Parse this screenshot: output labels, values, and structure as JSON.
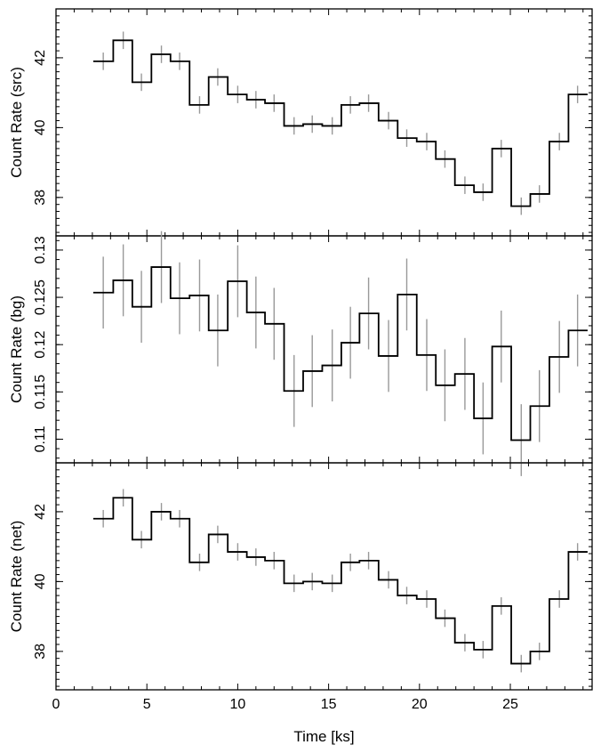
{
  "chart_data": [
    {
      "type": "line",
      "style": "step-histogram with error bars",
      "ylabel": "Count Rate (src)",
      "xlim": [
        0,
        29.5
      ],
      "ylim": [
        36.9,
        43.4
      ],
      "yticks": [
        38,
        40,
        42
      ],
      "step_color": "#000000",
      "errorbar_color": "#999999",
      "x": [
        2.6,
        3.7,
        4.7,
        5.8,
        6.8,
        7.9,
        8.9,
        10.0,
        11.0,
        12.0,
        13.1,
        14.1,
        15.2,
        16.2,
        17.2,
        18.3,
        19.3,
        20.4,
        21.4,
        22.5,
        23.5,
        24.5,
        25.6,
        26.6,
        27.7,
        28.7
      ],
      "values": [
        41.9,
        42.5,
        41.3,
        42.1,
        41.9,
        40.65,
        41.45,
        40.95,
        40.8,
        40.7,
        40.05,
        40.1,
        40.05,
        40.65,
        40.7,
        40.2,
        39.7,
        39.6,
        39.1,
        38.35,
        38.15,
        39.4,
        37.75,
        38.1,
        39.6,
        40.95
      ],
      "errors": [
        0.25,
        0.25,
        0.25,
        0.25,
        0.25,
        0.25,
        0.25,
        0.25,
        0.25,
        0.25,
        0.25,
        0.25,
        0.25,
        0.25,
        0.25,
        0.25,
        0.25,
        0.25,
        0.25,
        0.25,
        0.25,
        0.25,
        0.25,
        0.25,
        0.25,
        0.25
      ]
    },
    {
      "type": "line",
      "style": "step-histogram with error bars",
      "ylabel": "Count Rate (bg)",
      "xlim": [
        0,
        29.5
      ],
      "ylim": [
        0.1075,
        0.1315
      ],
      "yticks": [
        0.11,
        0.115,
        0.12,
        0.125,
        0.13
      ],
      "ytick_labels": [
        "0.11",
        "0.115",
        "0.12",
        "0.125",
        "0.13"
      ],
      "step_color": "#000000",
      "errorbar_color": "#999999",
      "x": [
        2.6,
        3.7,
        4.7,
        5.8,
        6.8,
        7.9,
        8.9,
        10.0,
        11.0,
        12.0,
        13.1,
        14.1,
        15.2,
        16.2,
        17.2,
        18.3,
        19.3,
        20.4,
        21.4,
        22.5,
        23.5,
        24.5,
        25.6,
        26.6,
        27.7,
        28.7
      ],
      "values": [
        0.1255,
        0.1268,
        0.124,
        0.1282,
        0.1249,
        0.1252,
        0.1215,
        0.1267,
        0.1234,
        0.1222,
        0.1151,
        0.1172,
        0.1178,
        0.1202,
        0.1233,
        0.1188,
        0.1253,
        0.1189,
        0.1157,
        0.1169,
        0.1122,
        0.1198,
        0.1099,
        0.1135,
        0.1187,
        0.1215
      ],
      "errors": [
        0.0038,
        0.0038,
        0.0038,
        0.0038,
        0.0038,
        0.0038,
        0.0038,
        0.0038,
        0.0038,
        0.0038,
        0.0038,
        0.0038,
        0.0038,
        0.0038,
        0.0038,
        0.0038,
        0.0038,
        0.0038,
        0.0038,
        0.0038,
        0.0038,
        0.0038,
        0.0038,
        0.0038,
        0.0038,
        0.0038
      ]
    },
    {
      "type": "line",
      "style": "step-histogram with error bars",
      "ylabel": "Count Rate (net)",
      "xlabel": "Time [ks]",
      "xlim": [
        0,
        29.5
      ],
      "ylim": [
        36.9,
        43.4
      ],
      "yticks": [
        38,
        40,
        42
      ],
      "xticks": [
        0,
        5,
        10,
        15,
        20,
        25
      ],
      "step_color": "#000000",
      "errorbar_color": "#999999",
      "x": [
        2.6,
        3.7,
        4.7,
        5.8,
        6.8,
        7.9,
        8.9,
        10.0,
        11.0,
        12.0,
        13.1,
        14.1,
        15.2,
        16.2,
        17.2,
        18.3,
        19.3,
        20.4,
        21.4,
        22.5,
        23.5,
        24.5,
        25.6,
        26.6,
        27.7,
        28.7
      ],
      "values": [
        41.8,
        42.4,
        41.2,
        42.0,
        41.8,
        40.55,
        41.35,
        40.85,
        40.7,
        40.6,
        39.95,
        40.0,
        39.95,
        40.55,
        40.6,
        40.05,
        39.6,
        39.5,
        38.95,
        38.25,
        38.05,
        39.3,
        37.65,
        38.0,
        39.5,
        40.85
      ],
      "errors": [
        0.25,
        0.25,
        0.25,
        0.25,
        0.25,
        0.25,
        0.25,
        0.25,
        0.25,
        0.25,
        0.25,
        0.25,
        0.25,
        0.25,
        0.25,
        0.25,
        0.25,
        0.25,
        0.25,
        0.25,
        0.25,
        0.25,
        0.25,
        0.25,
        0.25,
        0.25
      ]
    }
  ]
}
